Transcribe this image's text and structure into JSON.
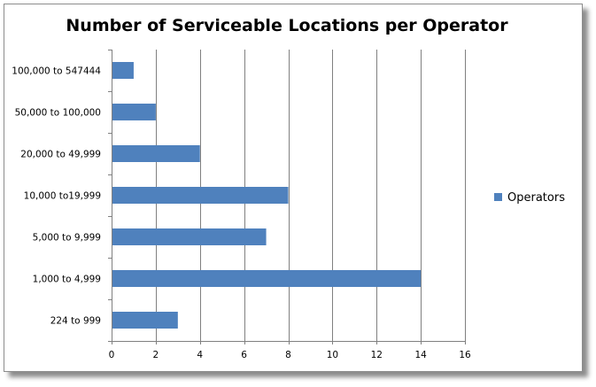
{
  "chart_data": {
    "type": "bar",
    "orientation": "horizontal",
    "title": "Number of Serviceable Locations per Operator",
    "xlabel": "",
    "ylabel": "",
    "categories": [
      "100,000 to 547444",
      "50,000 to 100,000",
      "20,000 to 49,999",
      "10,000 to19,999",
      "5,000 to 9,999",
      "1,000 to 4,999",
      "224 to 999"
    ],
    "series": [
      {
        "name": "Operators",
        "values": [
          1,
          2,
          4,
          8,
          7,
          14,
          3
        ],
        "color": "#4f81bd"
      }
    ],
    "xlim": [
      0,
      16
    ],
    "xticks": [
      0,
      2,
      4,
      6,
      8,
      10,
      12,
      14,
      16
    ],
    "grid": "vertical major gridlines",
    "legend_position": "right"
  }
}
